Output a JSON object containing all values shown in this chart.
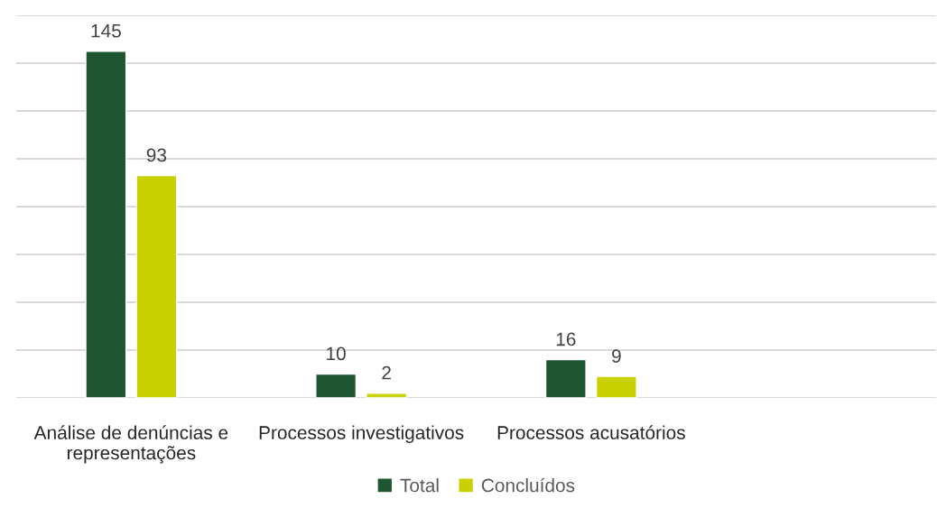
{
  "chart_data": {
    "type": "bar",
    "categories": [
      "Análise de denúncias e representações",
      "Processos investigativos",
      "Processos acusatórios",
      null
    ],
    "series": [
      {
        "name": "Total",
        "color": "#1e5631",
        "values": [
          145,
          10,
          16,
          null
        ]
      },
      {
        "name": "Concluídos",
        "color": "#c9d100",
        "values": [
          93,
          2,
          9,
          null
        ]
      }
    ],
    "ylim": [
      0,
      160
    ],
    "yticks": [
      {
        "value": 0,
        "label": null
      },
      {
        "value": 20,
        "label": null
      },
      {
        "value": 40,
        "label": null
      },
      {
        "value": 60,
        "label": null
      },
      {
        "value": 80,
        "label": null
      },
      {
        "value": 100,
        "label": null
      },
      {
        "value": 120,
        "label": null
      },
      {
        "value": 140,
        "label": null
      },
      {
        "value": 160,
        "label": null
      }
    ],
    "tick_labels": "x",
    "grid": "y",
    "legend": "bottom",
    "data_labels": true
  }
}
